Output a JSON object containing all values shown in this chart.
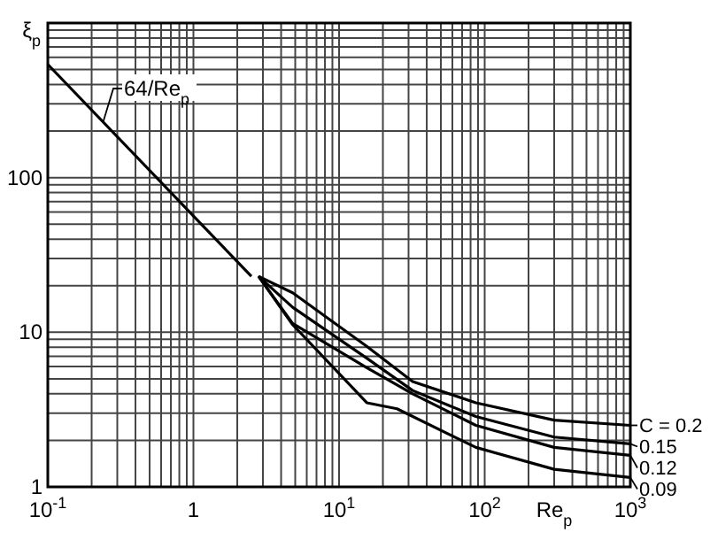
{
  "chart_data": {
    "type": "line",
    "xlabel": "Re$_{p}$",
    "ylabel": "ξ$_{p}$",
    "log": "xy",
    "grid": true,
    "legend": "right",
    "xlim": [
      0.1,
      1000
    ],
    "ylim": [
      1,
      1000
    ],
    "xticks": [
      {
        "value": 0.1,
        "label": "10$^{-1}$"
      },
      1,
      {
        "value": 10,
        "label": "10$^{1}$"
      },
      {
        "value": 100,
        "label": "10$^{2}$"
      },
      {
        "value": 1000,
        "label": "10$^{3}$"
      }
    ],
    "yticks": [
      1,
      10,
      100
    ],
    "series": [
      {
        "name": "64/Re$_{p}$",
        "color": "#000000",
        "x": [
          0.1,
          2.5
        ],
        "values": [
          540,
          23
        ]
      },
      {
        "name": "C = 0.2",
        "color": "#000000",
        "x": [
          2.8,
          4.8,
          15.5,
          32,
          87,
          300,
          1000
        ],
        "values": [
          23,
          18,
          8.1,
          4.8,
          3.5,
          2.7,
          2.5
        ]
      },
      {
        "name": "0.15",
        "color": "#000000",
        "x": [
          2.8,
          4.8,
          15.5,
          32,
          87,
          300,
          1000
        ],
        "values": [
          23,
          14.5,
          6.8,
          4.2,
          2.85,
          2.1,
          1.9
        ]
      },
      {
        "name": "0.12",
        "color": "#000000",
        "x": [
          2.8,
          4.8,
          15.5,
          32,
          87,
          300,
          1000
        ],
        "values": [
          23,
          11.4,
          5.9,
          4.0,
          2.5,
          1.8,
          1.6
        ]
      },
      {
        "name": "0.09",
        "color": "#000000",
        "x": [
          2.8,
          4.8,
          15.5,
          25,
          87,
          300,
          1000
        ],
        "values": [
          23,
          11.2,
          3.5,
          3.2,
          1.8,
          1.3,
          1.15
        ]
      }
    ]
  }
}
